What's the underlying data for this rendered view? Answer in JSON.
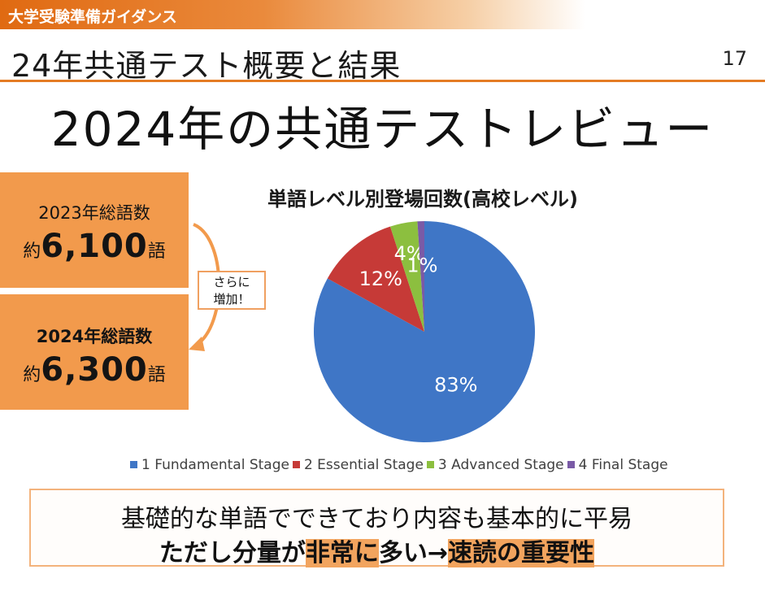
{
  "header": {
    "banner": "大学受験準備ガイダンス",
    "section_title": "24年共通テスト概要と結果",
    "page_number": "17",
    "main_title": "2024年の共通テストレビュー"
  },
  "word_counts": {
    "y2023": {
      "label": "2023年総語数",
      "prefix": "約",
      "value": "6,100",
      "suffix": "語"
    },
    "y2024": {
      "label": "2024年総語数",
      "prefix": "約",
      "value": "6,300",
      "suffix": "語"
    },
    "callout_line1": "さらに",
    "callout_line2": "増加！"
  },
  "chart_data": {
    "type": "pie",
    "title": "単語レベル別登場回数(高校レベル)",
    "categories": [
      "1 Fundamental Stage",
      "2 Essential Stage",
      "3 Advanced Stage",
      "4 Final Stage"
    ],
    "values": [
      83,
      12,
      4,
      1
    ],
    "labels": [
      "83%",
      "12%",
      "4%",
      "1%"
    ],
    "colors": [
      "#3f76c6",
      "#c63a37",
      "#8cbf3f",
      "#7a5aa6"
    ],
    "legend_position": "bottom"
  },
  "summary": {
    "line1": "基礎的な単語でできており内容も基本的に平易",
    "line2_a": "ただし分量が",
    "line2_hl1": "非常に",
    "line2_b": "多い→",
    "line2_hl2": "速読の重要性"
  },
  "colors": {
    "accent_orange": "#e47c24",
    "box_orange": "#f29a4c"
  }
}
